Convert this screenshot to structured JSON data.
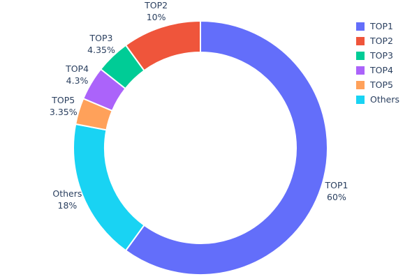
{
  "chart_data": {
    "type": "pie",
    "variant": "donut",
    "hole_ratio": 0.75,
    "title": "",
    "background_color": "#ffffff",
    "text_color": "#2a3f5f",
    "slice_border_color": "#ffffff",
    "series": [
      {
        "label": "TOP1",
        "value": 60,
        "display": "60%",
        "color": "#636EFA"
      },
      {
        "label": "TOP2",
        "value": 10,
        "display": "10%",
        "color": "#EF553B"
      },
      {
        "label": "TOP3",
        "value": 4.35,
        "display": "4.35%",
        "color": "#00CC96"
      },
      {
        "label": "TOP4",
        "value": 4.3,
        "display": "4.3%",
        "color": "#AB63FA"
      },
      {
        "label": "TOP5",
        "value": 3.35,
        "display": "3.35%",
        "color": "#FFA15A"
      },
      {
        "label": "Others",
        "value": 18,
        "display": "18%",
        "color": "#19D3F3"
      }
    ],
    "draw_order_clockwise_from_top": [
      "TOP1",
      "Others",
      "TOP5",
      "TOP4",
      "TOP3",
      "TOP2"
    ],
    "legend": {
      "position": "top-right",
      "entries": [
        "TOP1",
        "TOP2",
        "TOP3",
        "TOP4",
        "TOP5",
        "Others"
      ]
    }
  }
}
